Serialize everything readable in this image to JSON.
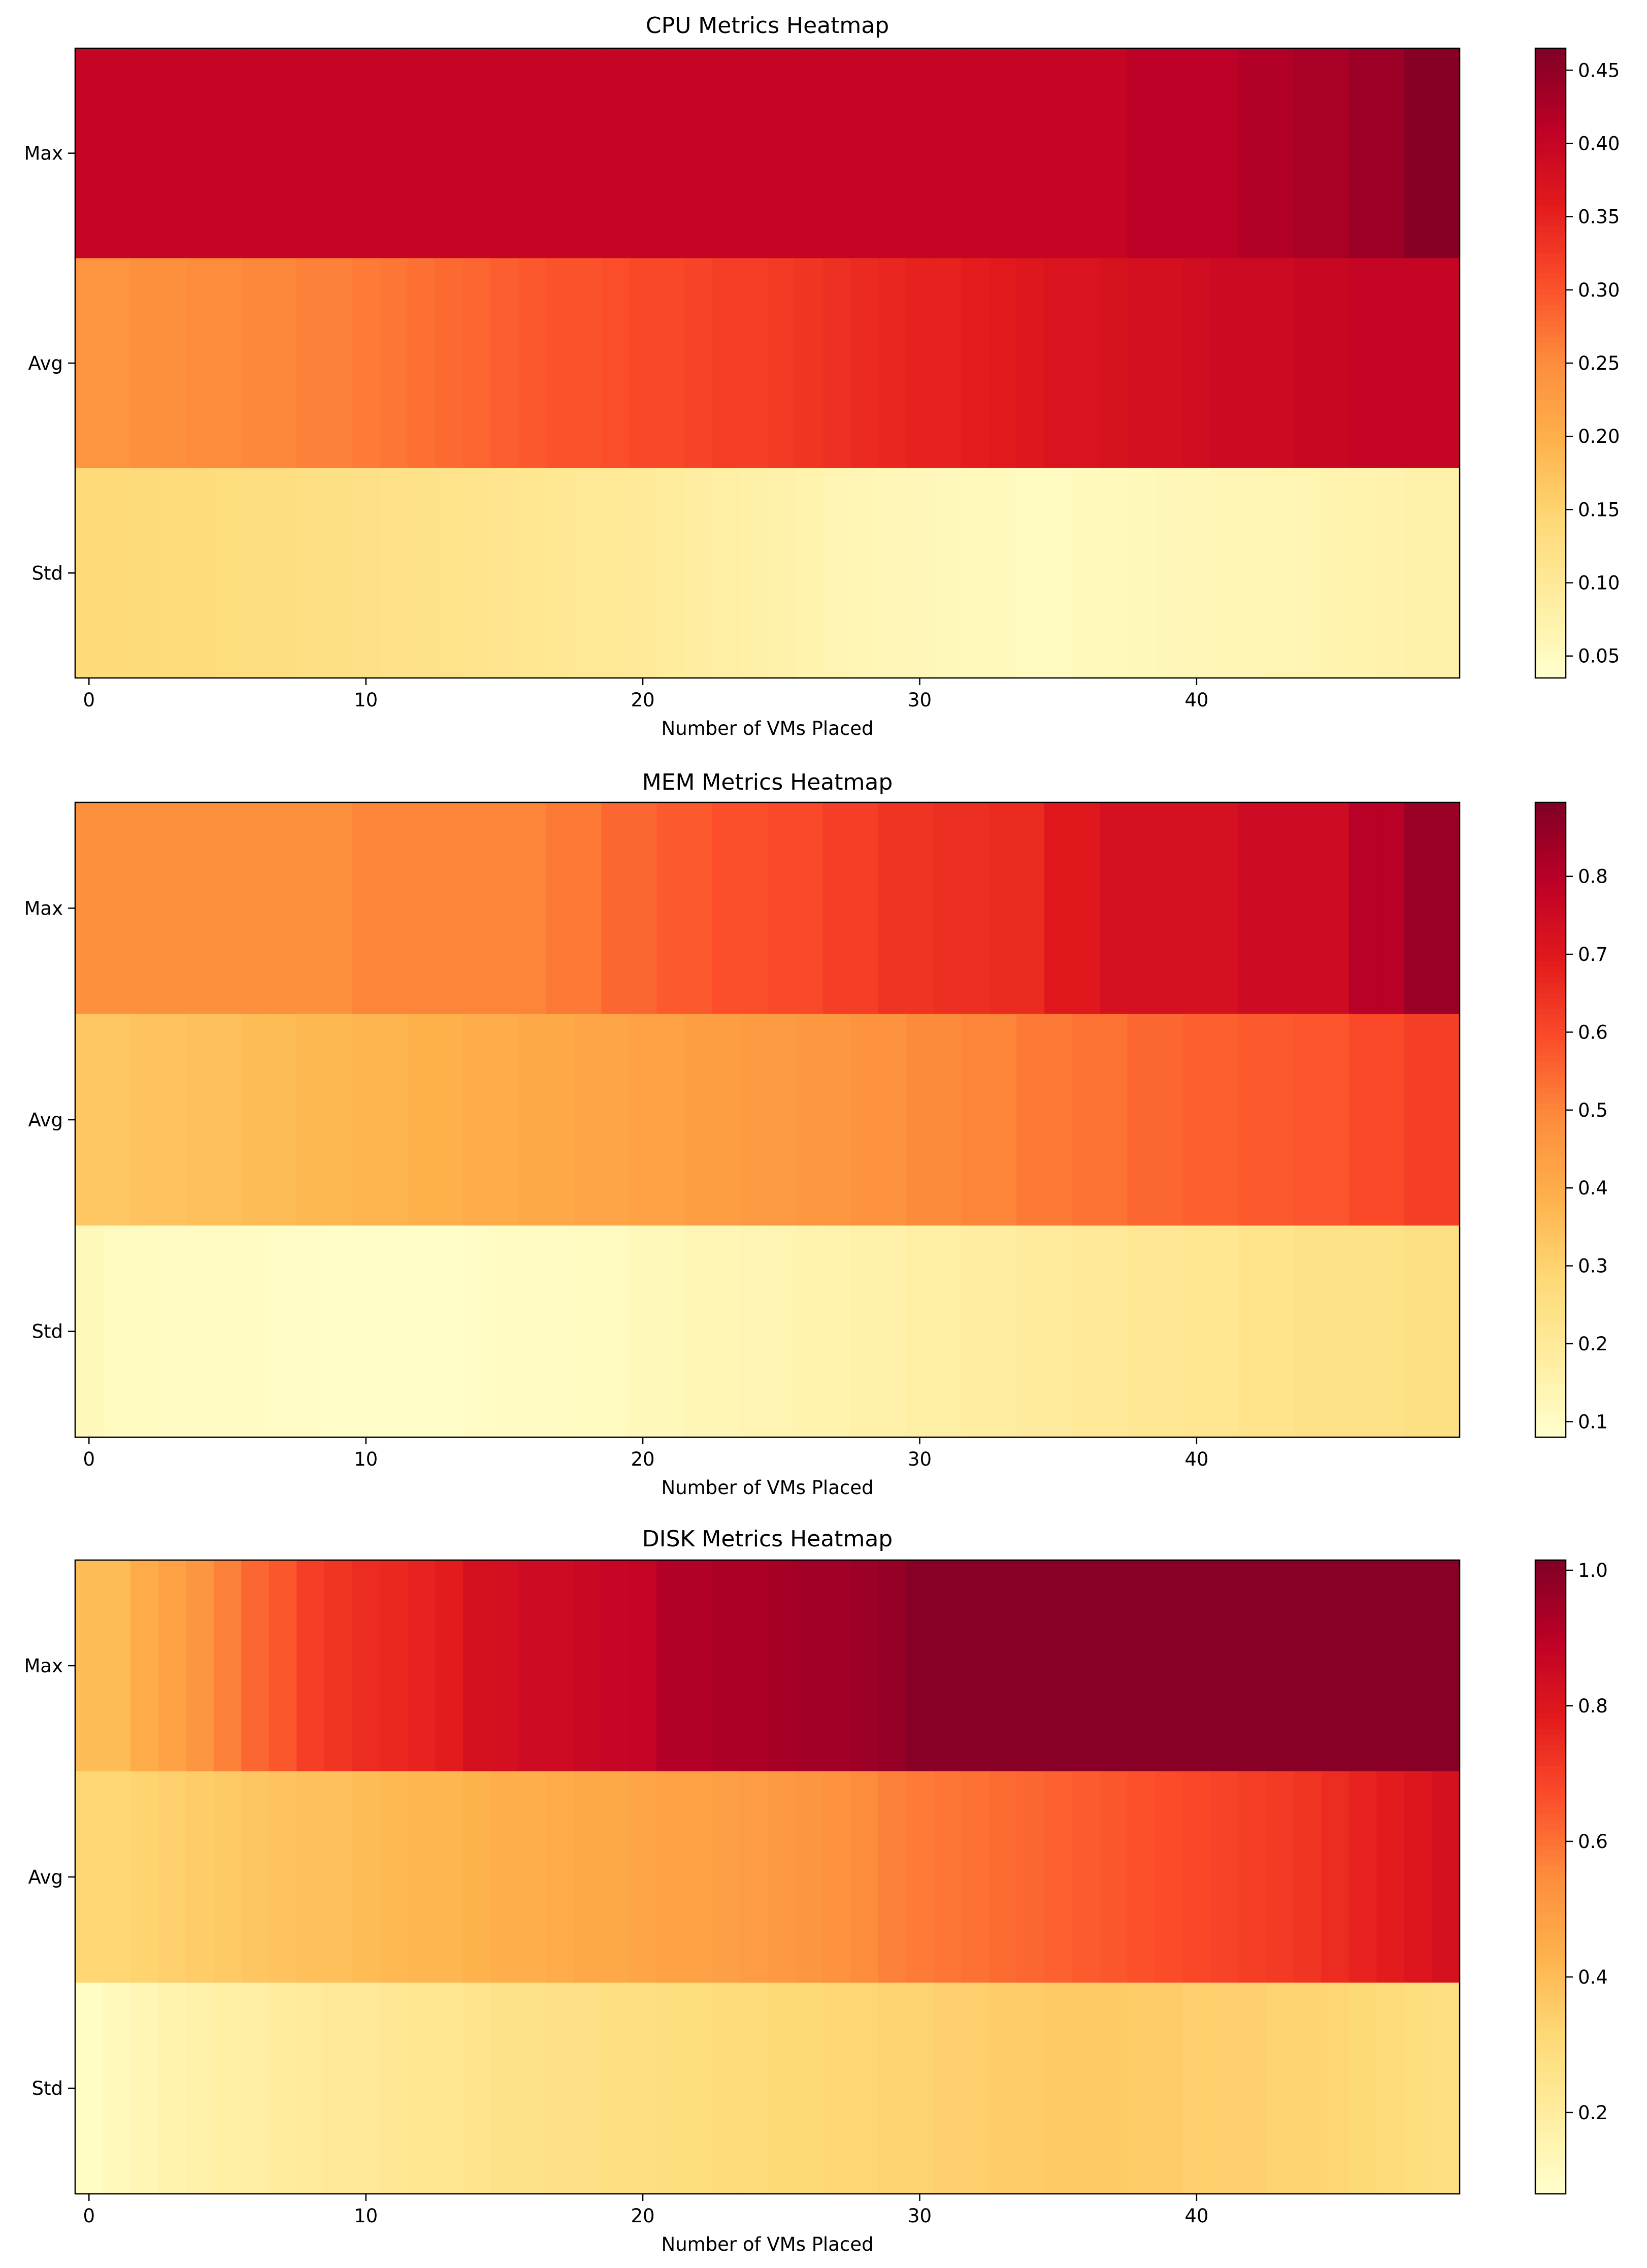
{
  "chart_data": [
    {
      "type": "heatmap",
      "title": "CPU Metrics Heatmap",
      "xlabel": "Number of VMs Placed",
      "ylabel": "",
      "rows": [
        "Max",
        "Avg",
        "Std"
      ],
      "x": [
        0,
        1,
        2,
        3,
        4,
        5,
        6,
        7,
        8,
        9,
        10,
        11,
        12,
        13,
        14,
        15,
        16,
        17,
        18,
        19,
        20,
        21,
        22,
        23,
        24,
        25,
        26,
        27,
        28,
        29,
        30,
        31,
        32,
        33,
        34,
        35,
        36,
        37,
        38,
        39,
        40,
        41,
        42,
        43,
        44,
        45,
        46,
        47,
        48,
        49
      ],
      "xticks": [
        0,
        10,
        20,
        30,
        40
      ],
      "colorbar_ticks": [
        0.05,
        0.1,
        0.15,
        0.2,
        0.25,
        0.3,
        0.35,
        0.4,
        0.45
      ],
      "vmin": 0.035,
      "vmax": 0.465,
      "colormap": "YlOrRd",
      "values": [
        [
          0.4,
          0.4,
          0.4,
          0.4,
          0.4,
          0.4,
          0.4,
          0.4,
          0.4,
          0.4,
          0.4,
          0.4,
          0.4,
          0.4,
          0.4,
          0.4,
          0.4,
          0.4,
          0.4,
          0.4,
          0.4,
          0.4,
          0.4,
          0.4,
          0.4,
          0.4,
          0.4,
          0.4,
          0.4,
          0.4,
          0.4,
          0.4,
          0.4,
          0.4,
          0.4,
          0.4,
          0.4,
          0.4,
          0.41,
          0.41,
          0.41,
          0.41,
          0.42,
          0.42,
          0.43,
          0.43,
          0.44,
          0.44,
          0.46,
          0.46
        ],
        [
          0.24,
          0.24,
          0.245,
          0.245,
          0.25,
          0.25,
          0.255,
          0.255,
          0.26,
          0.26,
          0.265,
          0.27,
          0.275,
          0.28,
          0.285,
          0.29,
          0.295,
          0.3,
          0.3,
          0.305,
          0.31,
          0.31,
          0.315,
          0.32,
          0.32,
          0.325,
          0.33,
          0.335,
          0.34,
          0.345,
          0.35,
          0.35,
          0.355,
          0.36,
          0.365,
          0.37,
          0.37,
          0.375,
          0.38,
          0.38,
          0.385,
          0.39,
          0.39,
          0.39,
          0.395,
          0.395,
          0.4,
          0.4,
          0.4,
          0.4
        ],
        [
          0.14,
          0.14,
          0.138,
          0.136,
          0.134,
          0.132,
          0.13,
          0.128,
          0.126,
          0.124,
          0.122,
          0.12,
          0.118,
          0.115,
          0.112,
          0.11,
          0.108,
          0.105,
          0.102,
          0.1,
          0.096,
          0.092,
          0.088,
          0.084,
          0.08,
          0.076,
          0.072,
          0.068,
          0.064,
          0.06,
          0.058,
          0.055,
          0.053,
          0.052,
          0.05,
          0.05,
          0.052,
          0.054,
          0.056,
          0.058,
          0.06,
          0.062,
          0.064,
          0.066,
          0.068,
          0.07,
          0.072,
          0.074,
          0.076,
          0.078
        ]
      ]
    },
    {
      "type": "heatmap",
      "title": "MEM Metrics Heatmap",
      "xlabel": "Number of VMs Placed",
      "ylabel": "",
      "rows": [
        "Max",
        "Avg",
        "Std"
      ],
      "x": [
        0,
        1,
        2,
        3,
        4,
        5,
        6,
        7,
        8,
        9,
        10,
        11,
        12,
        13,
        14,
        15,
        16,
        17,
        18,
        19,
        20,
        21,
        22,
        23,
        24,
        25,
        26,
        27,
        28,
        29,
        30,
        31,
        32,
        33,
        34,
        35,
        36,
        37,
        38,
        39,
        40,
        41,
        42,
        43,
        44,
        45,
        46,
        47,
        48,
        49
      ],
      "xticks": [
        0,
        10,
        20,
        30,
        40
      ],
      "colorbar_ticks": [
        0.1,
        0.2,
        0.3,
        0.4,
        0.5,
        0.6,
        0.7,
        0.8
      ],
      "vmin": 0.08,
      "vmax": 0.895,
      "colormap": "YlOrRd",
      "values": [
        [
          0.48,
          0.48,
          0.48,
          0.48,
          0.48,
          0.48,
          0.48,
          0.48,
          0.48,
          0.48,
          0.5,
          0.5,
          0.5,
          0.5,
          0.5,
          0.5,
          0.5,
          0.52,
          0.52,
          0.55,
          0.55,
          0.57,
          0.57,
          0.59,
          0.59,
          0.6,
          0.6,
          0.62,
          0.62,
          0.64,
          0.64,
          0.65,
          0.65,
          0.66,
          0.66,
          0.7,
          0.7,
          0.73,
          0.73,
          0.73,
          0.73,
          0.73,
          0.75,
          0.75,
          0.75,
          0.75,
          0.8,
          0.8,
          0.85,
          0.85
        ],
        [
          0.33,
          0.33,
          0.34,
          0.34,
          0.35,
          0.35,
          0.36,
          0.36,
          0.37,
          0.37,
          0.38,
          0.38,
          0.39,
          0.39,
          0.4,
          0.4,
          0.41,
          0.41,
          0.42,
          0.42,
          0.43,
          0.43,
          0.44,
          0.44,
          0.45,
          0.45,
          0.46,
          0.46,
          0.47,
          0.47,
          0.49,
          0.49,
          0.5,
          0.5,
          0.52,
          0.52,
          0.53,
          0.53,
          0.55,
          0.55,
          0.56,
          0.56,
          0.57,
          0.57,
          0.58,
          0.58,
          0.6,
          0.6,
          0.62,
          0.62
        ],
        [
          0.12,
          0.11,
          0.11,
          0.1,
          0.1,
          0.1,
          0.1,
          0.095,
          0.095,
          0.09,
          0.09,
          0.09,
          0.09,
          0.09,
          0.095,
          0.1,
          0.1,
          0.1,
          0.11,
          0.11,
          0.12,
          0.12,
          0.13,
          0.13,
          0.14,
          0.14,
          0.15,
          0.15,
          0.16,
          0.16,
          0.17,
          0.17,
          0.18,
          0.18,
          0.19,
          0.19,
          0.2,
          0.2,
          0.21,
          0.21,
          0.22,
          0.22,
          0.23,
          0.23,
          0.24,
          0.24,
          0.24,
          0.24,
          0.25,
          0.25
        ]
      ]
    },
    {
      "type": "heatmap",
      "title": "DISK Metrics Heatmap",
      "xlabel": "Number of VMs Placed",
      "ylabel": "",
      "rows": [
        "Max",
        "Avg",
        "Std"
      ],
      "x": [
        0,
        1,
        2,
        3,
        4,
        5,
        6,
        7,
        8,
        9,
        10,
        11,
        12,
        13,
        14,
        15,
        16,
        17,
        18,
        19,
        20,
        21,
        22,
        23,
        24,
        25,
        26,
        27,
        28,
        29,
        30,
        31,
        32,
        33,
        34,
        35,
        36,
        37,
        38,
        39,
        40,
        41,
        42,
        43,
        44,
        45,
        46,
        47,
        48,
        49
      ],
      "xticks": [
        0,
        10,
        20,
        30,
        40
      ],
      "colorbar_ticks": [
        0.2,
        0.4,
        0.6,
        0.8,
        1.0
      ],
      "vmin": 0.08,
      "vmax": 1.015,
      "colormap": "YlOrRd",
      "values": [
        [
          0.4,
          0.4,
          0.45,
          0.48,
          0.52,
          0.57,
          0.62,
          0.65,
          0.7,
          0.72,
          0.74,
          0.75,
          0.76,
          0.78,
          0.82,
          0.83,
          0.85,
          0.85,
          0.86,
          0.87,
          0.88,
          0.92,
          0.92,
          0.93,
          0.93,
          0.94,
          0.95,
          0.95,
          0.96,
          0.97,
          1.0,
          1.0,
          1.0,
          1.0,
          1.0,
          1.0,
          1.0,
          1.0,
          1.0,
          1.0,
          1.0,
          1.0,
          1.0,
          1.0,
          1.0,
          1.0,
          1.0,
          1.0,
          1.0,
          1.0
        ],
        [
          0.32,
          0.32,
          0.33,
          0.34,
          0.35,
          0.36,
          0.37,
          0.38,
          0.39,
          0.39,
          0.4,
          0.41,
          0.42,
          0.42,
          0.43,
          0.44,
          0.44,
          0.45,
          0.46,
          0.46,
          0.47,
          0.48,
          0.48,
          0.49,
          0.5,
          0.51,
          0.52,
          0.53,
          0.55,
          0.57,
          0.58,
          0.59,
          0.6,
          0.61,
          0.62,
          0.63,
          0.64,
          0.65,
          0.66,
          0.67,
          0.68,
          0.69,
          0.7,
          0.71,
          0.72,
          0.74,
          0.76,
          0.78,
          0.8,
          0.82
        ],
        [
          0.1,
          0.12,
          0.14,
          0.16,
          0.17,
          0.18,
          0.19,
          0.2,
          0.21,
          0.22,
          0.22,
          0.23,
          0.24,
          0.24,
          0.25,
          0.26,
          0.26,
          0.27,
          0.27,
          0.28,
          0.28,
          0.29,
          0.29,
          0.3,
          0.3,
          0.31,
          0.31,
          0.32,
          0.32,
          0.33,
          0.33,
          0.34,
          0.34,
          0.35,
          0.35,
          0.36,
          0.36,
          0.36,
          0.35,
          0.35,
          0.34,
          0.34,
          0.34,
          0.33,
          0.33,
          0.32,
          0.31,
          0.3,
          0.29,
          0.28
        ]
      ]
    }
  ]
}
